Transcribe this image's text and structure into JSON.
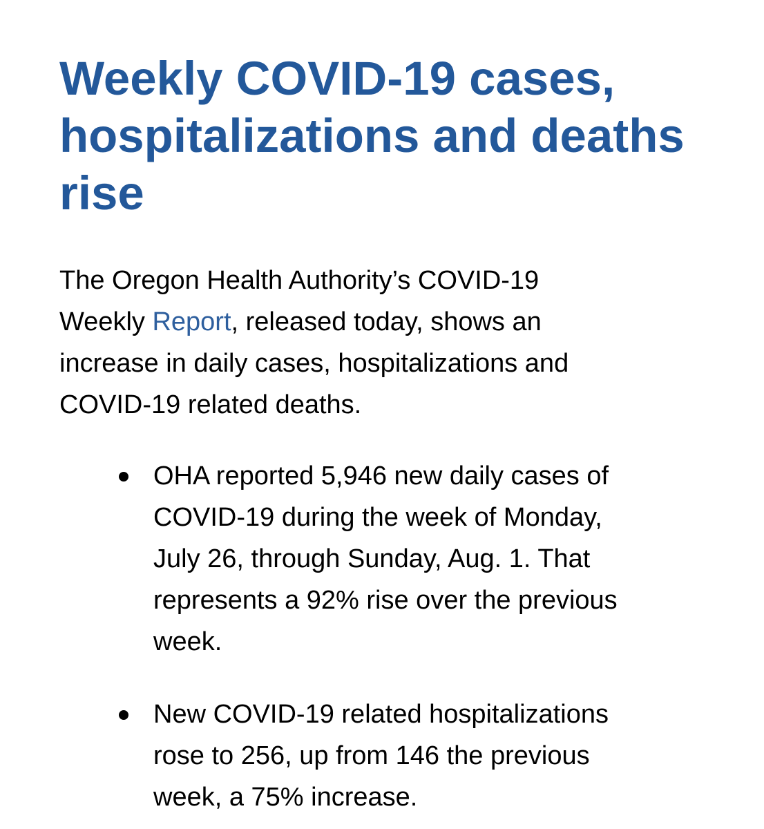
{
  "title_lines": [
    "Weekly COVID-19 cases,",
    "hospitalizations and deaths",
    "rise"
  ],
  "intro": {
    "line1": "The Oregon Health Authority’s COVID-19",
    "line2_pre": "Weekly ",
    "link": "Report",
    "line2_post": ", released today, shows an",
    "line3": "increase in daily cases, hospitalizations and",
    "line4": "COVID-19 related deaths."
  },
  "bullets": [
    [
      "OHA reported 5,946 new daily cases of",
      "COVID-19 during the week of Monday,",
      "July 26, through Sunday, Aug. 1. That",
      "represents a 92% rise over the previous",
      "week."
    ],
    [
      "New COVID-19 related hospitalizations",
      "rose to 256, up from 146 the previous",
      "week, a 75% increase."
    ]
  ],
  "colors": {
    "title": "#23589a",
    "link": "#2e5f9e"
  }
}
